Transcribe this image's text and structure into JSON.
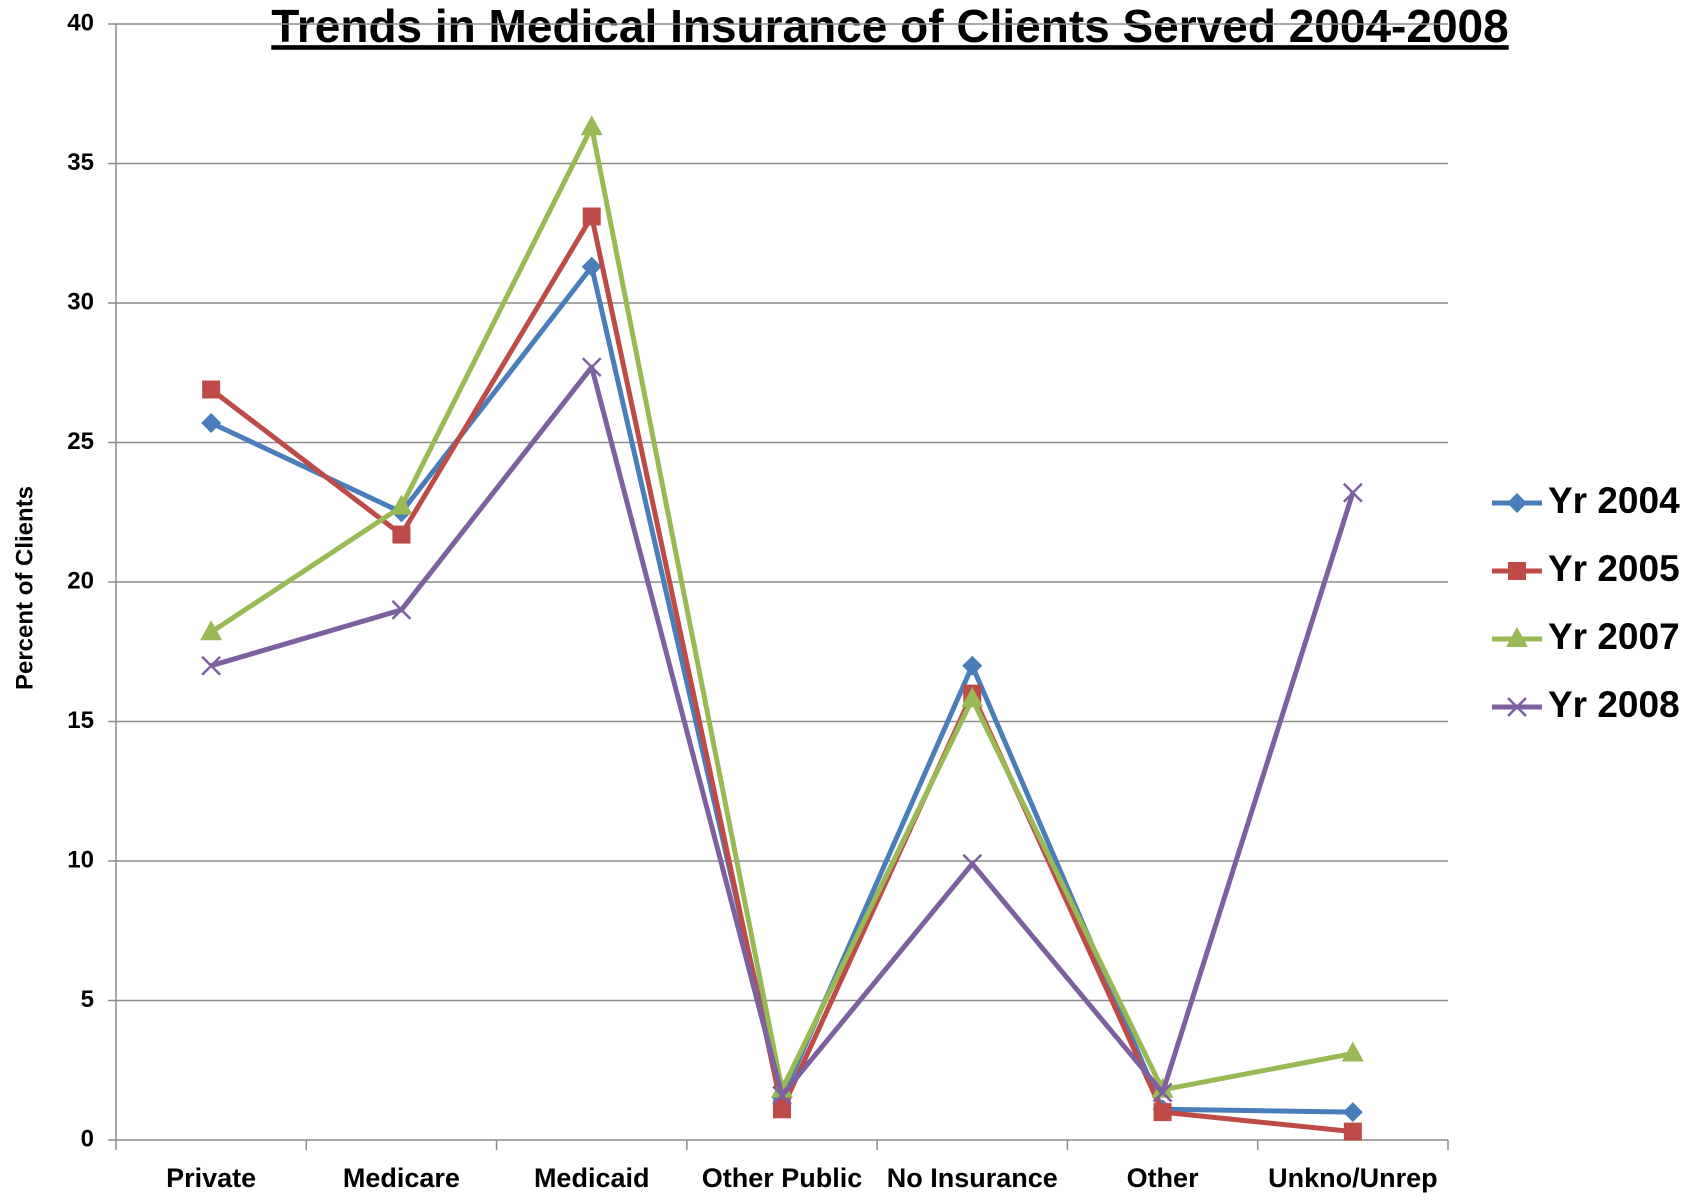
{
  "chart_data": {
    "type": "line",
    "title": "Trends in Medical Insurance of Clients Served 2004-2008",
    "y_label": "Percent of Clients",
    "categories": [
      "Private",
      "Medicare",
      "Medicaid",
      "Other Public",
      "No Insurance",
      "Other",
      "Unkno/Unrep"
    ],
    "series": [
      {
        "name": "Yr 2004",
        "color": "#4a7ebb",
        "marker": "diamond",
        "values": [
          25.7,
          22.5,
          31.3,
          1.5,
          17.0,
          1.1,
          1.0
        ]
      },
      {
        "name": "Yr 2005",
        "color": "#be4b48",
        "marker": "square",
        "values": [
          26.9,
          21.7,
          33.1,
          1.1,
          16.0,
          1.0,
          0.3
        ]
      },
      {
        "name": "Yr 2007",
        "color": "#98b954",
        "marker": "triangle",
        "values": [
          18.2,
          22.7,
          36.3,
          1.8,
          15.8,
          1.8,
          3.1
        ]
      },
      {
        "name": "Yr 2008",
        "color": "#7d60a0",
        "marker": "x",
        "values": [
          17.0,
          19.0,
          27.7,
          1.6,
          9.9,
          1.7,
          23.2
        ]
      }
    ],
    "ylim": [
      0,
      40
    ],
    "yticks": [
      0,
      5,
      10,
      15,
      20,
      25,
      30,
      35,
      40
    ],
    "grid": true,
    "legend": "right"
  }
}
